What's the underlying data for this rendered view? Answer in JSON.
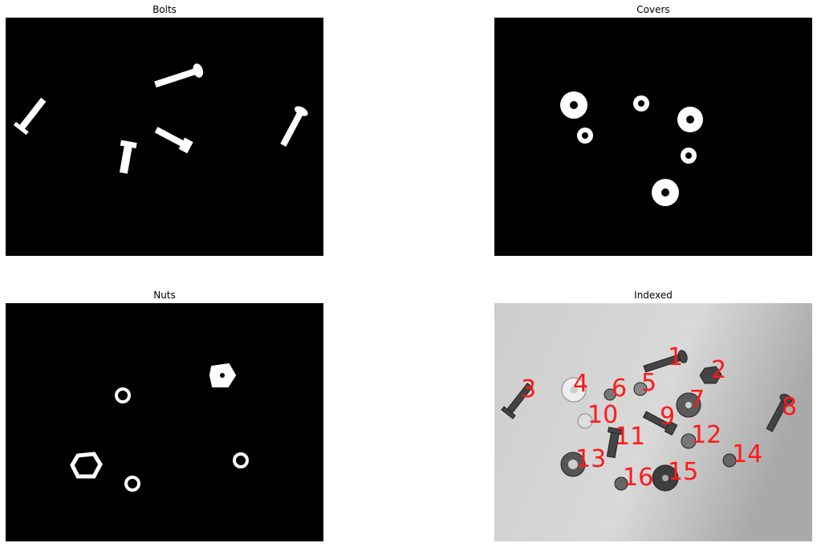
{
  "panels": {
    "bolts": {
      "title": "Bolts"
    },
    "covers": {
      "title": "Covers"
    },
    "nuts": {
      "title": "Nuts"
    },
    "indexed": {
      "title": "Indexed"
    }
  },
  "indexed_labels": [
    "1",
    "2",
    "3",
    "4",
    "5",
    "6",
    "7",
    "8",
    "9",
    "10",
    "11",
    "12",
    "13",
    "14",
    "15",
    "16"
  ],
  "colors": {
    "mask_bg": "#000000",
    "mask_fg": "#ffffff",
    "label": "#ff1a1a"
  }
}
